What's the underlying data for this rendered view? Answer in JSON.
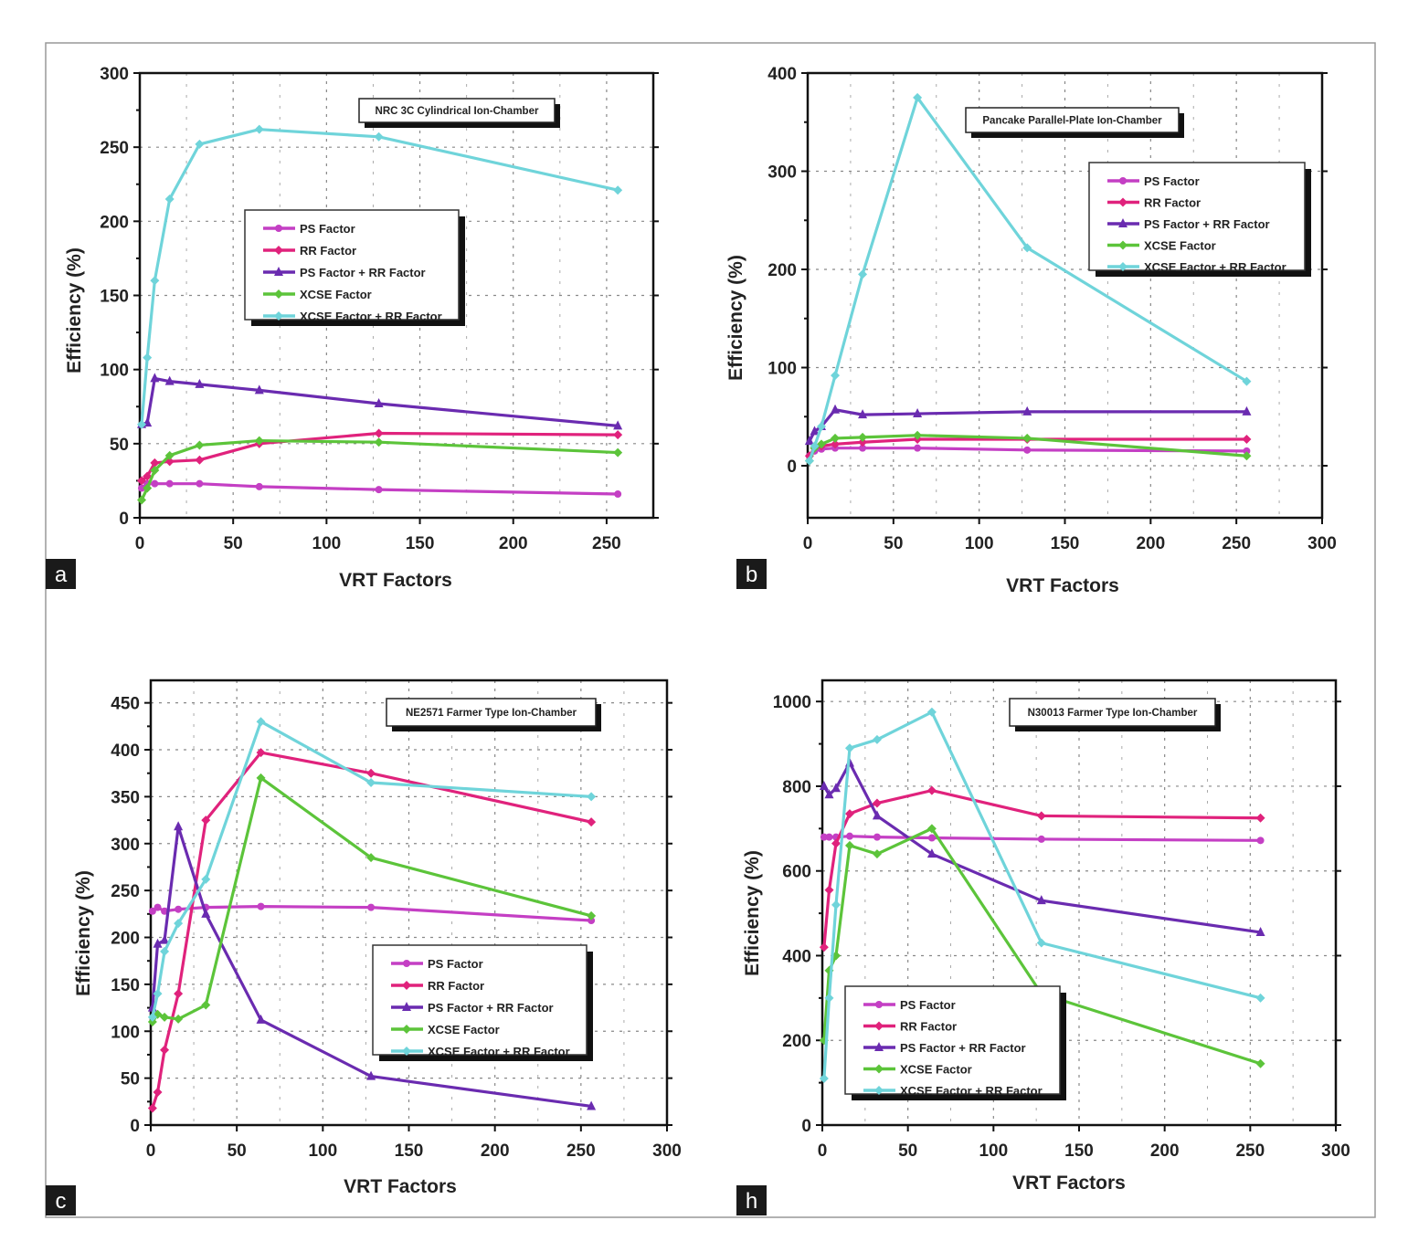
{
  "legend_labels": [
    "PS Factor",
    "RR Factor",
    "PS Factor + RR Factor",
    "XCSE Factor",
    "XCSE Factor + RR Factor"
  ],
  "colors": {
    "ps": "#c43fc4",
    "rr": "#e0227c",
    "psrr": "#6a2bb0",
    "xcse": "#5cc43a",
    "xcse_rr": "#6fd4da"
  },
  "chart_data": [
    {
      "type": "line",
      "panel_label": "a",
      "title": "NRC 3C Cylindrical Ion-Chamber",
      "xlabel": "VRT Factors",
      "ylabel": "Efficiency (%)",
      "xlim": [
        0,
        275
      ],
      "ylim": [
        0,
        300
      ],
      "grid": true,
      "legend_placement": "center",
      "xticks": [
        "0",
        "50",
        "100",
        "150",
        "200",
        "250"
      ],
      "xtick_values": [
        0,
        50,
        100,
        150,
        200,
        250
      ],
      "yticks": [
        "0",
        "50",
        "100",
        "150",
        "200",
        "250",
        "300"
      ],
      "ytick_values": [
        0,
        50,
        100,
        150,
        200,
        250,
        300
      ],
      "x": [
        1,
        4,
        8,
        16,
        32,
        64,
        128,
        256
      ],
      "series": [
        {
          "name": "PS Factor",
          "values": [
            20,
            23,
            23,
            23,
            23,
            21,
            19,
            16
          ]
        },
        {
          "name": "RR Factor",
          "values": [
            25,
            28,
            37,
            38,
            39,
            50,
            57,
            56
          ]
        },
        {
          "name": "PS Factor + RR Factor",
          "values": [
            63,
            64,
            94,
            92,
            90,
            86,
            77,
            62
          ]
        },
        {
          "name": "XCSE Factor",
          "values": [
            12,
            20,
            32,
            42,
            49,
            52,
            51,
            44
          ]
        },
        {
          "name": "XCSE Factor + RR Factor",
          "values": [
            63,
            108,
            160,
            215,
            252,
            262,
            257,
            221
          ]
        }
      ]
    },
    {
      "type": "line",
      "panel_label": "b",
      "title": "Pancake Parallel-Plate Ion-Chamber",
      "xlabel": "VRT Factors",
      "ylabel": "Efficiency (%)",
      "xlim": [
        0,
        300
      ],
      "ylim": [
        -53,
        400
      ],
      "grid": true,
      "legend_placement": "top-right",
      "xticks": [
        "0",
        "50",
        "100",
        "150",
        "200",
        "250",
        "300"
      ],
      "xtick_values": [
        0,
        50,
        100,
        150,
        200,
        250,
        300
      ],
      "yticks": [
        "0",
        "100",
        "200",
        "300",
        "400"
      ],
      "ytick_values": [
        0,
        100,
        200,
        300,
        400
      ],
      "x": [
        1,
        4,
        8,
        16,
        32,
        64,
        128,
        256
      ],
      "series": [
        {
          "name": "PS Factor",
          "values": [
            10,
            15,
            17,
            18,
            18,
            18,
            16,
            15
          ]
        },
        {
          "name": "RR Factor",
          "values": [
            10,
            18,
            20,
            22,
            24,
            27,
            27,
            27
          ]
        },
        {
          "name": "PS Factor + RR Factor",
          "values": [
            25,
            35,
            40,
            57,
            52,
            53,
            55,
            55
          ]
        },
        {
          "name": "XCSE Factor",
          "values": [
            5,
            18,
            22,
            28,
            29,
            31,
            28,
            10
          ]
        },
        {
          "name": "XCSE Factor + RR Factor",
          "values": [
            5,
            20,
            40,
            92,
            195,
            375,
            222,
            86
          ]
        }
      ]
    },
    {
      "type": "line",
      "panel_label": "c",
      "title": "NE2571 Farmer Type Ion-Chamber",
      "xlabel": "VRT Factors",
      "ylabel": "Efficiency (%)",
      "xlim": [
        0,
        300
      ],
      "ylim": [
        0,
        474
      ],
      "grid": true,
      "legend_placement": "center-right",
      "xticks": [
        "0",
        "50",
        "100",
        "150",
        "200",
        "250",
        "300"
      ],
      "xtick_values": [
        0,
        50,
        100,
        150,
        200,
        250,
        300
      ],
      "yticks": [
        "0",
        "50",
        "100",
        "150",
        "200",
        "250",
        "300",
        "350",
        "400",
        "450"
      ],
      "ytick_values": [
        0,
        50,
        100,
        150,
        200,
        250,
        300,
        350,
        400,
        450
      ],
      "x": [
        1,
        4,
        8,
        16,
        32,
        64,
        128,
        256
      ],
      "series": [
        {
          "name": "PS Factor",
          "values": [
            228,
            232,
            228,
            230,
            232,
            233,
            232,
            218
          ]
        },
        {
          "name": "RR Factor",
          "values": [
            18,
            35,
            80,
            140,
            325,
            397,
            375,
            323
          ]
        },
        {
          "name": "PS Factor + RR Factor",
          "values": [
            125,
            193,
            197,
            318,
            225,
            112,
            52,
            20
          ]
        },
        {
          "name": "XCSE Factor",
          "values": [
            110,
            118,
            115,
            113,
            128,
            370,
            285,
            223
          ]
        },
        {
          "name": "XCSE Factor + RR Factor",
          "values": [
            115,
            140,
            185,
            215,
            262,
            430,
            365,
            350
          ]
        }
      ]
    },
    {
      "type": "line",
      "panel_label": "h",
      "title": "N30013 Farmer Type Ion-Chamber",
      "xlabel": "VRT Factors",
      "ylabel": "Efficiency (%)",
      "xlim": [
        0,
        300
      ],
      "ylim": [
        0,
        1050
      ],
      "grid": true,
      "legend_placement": "bottom-left",
      "xticks": [
        "0",
        "50",
        "100",
        "150",
        "200",
        "250",
        "300"
      ],
      "xtick_values": [
        0,
        50,
        100,
        150,
        200,
        250,
        300
      ],
      "yticks": [
        "0",
        "200",
        "400",
        "600",
        "800",
        "1000"
      ],
      "ytick_values": [
        0,
        200,
        400,
        600,
        800,
        1000
      ],
      "x": [
        1,
        4,
        8,
        16,
        32,
        64,
        128,
        256
      ],
      "series": [
        {
          "name": "PS Factor",
          "values": [
            680,
            680,
            680,
            682,
            680,
            678,
            675,
            672
          ]
        },
        {
          "name": "RR Factor",
          "values": [
            420,
            555,
            665,
            735,
            760,
            790,
            730,
            725
          ]
        },
        {
          "name": "PS Factor + RR Factor",
          "values": [
            800,
            780,
            795,
            855,
            730,
            640,
            530,
            455
          ]
        },
        {
          "name": "XCSE Factor",
          "values": [
            200,
            365,
            400,
            660,
            640,
            700,
            310,
            145
          ]
        },
        {
          "name": "XCSE Factor + RR Factor",
          "values": [
            110,
            300,
            520,
            890,
            910,
            975,
            430,
            300
          ]
        }
      ]
    }
  ]
}
